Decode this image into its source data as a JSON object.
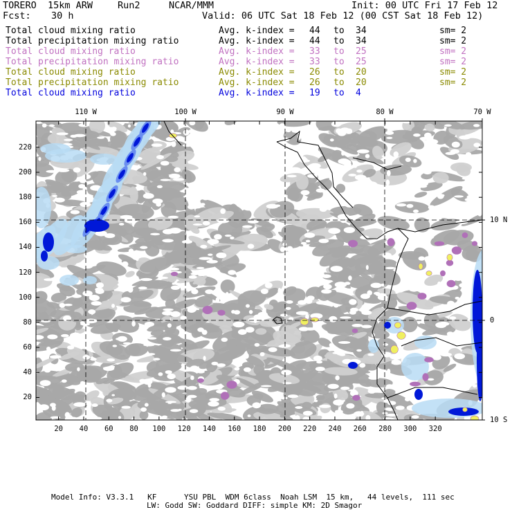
{
  "header": {
    "model": "TORERO  15km ARW",
    "run": "Run2",
    "org": "NCAR/MMM",
    "init": "Init: 00 UTC Fri 17 Feb 12",
    "fcst_label": "Fcst:",
    "fcst_value": "30 h",
    "valid": "Valid: 06 UTC Sat 18 Feb 12 (00 CST Sat 18 Feb 12)"
  },
  "legend": [
    {
      "field": "Total cloud mixing ratio",
      "index": "Avg. k-index =",
      "from": "44",
      "to_word": "to",
      "to": "34",
      "sm": "sm= 2",
      "color": "#000000"
    },
    {
      "field": "Total precipitation mixing ratio",
      "index": "Avg. k-index =",
      "from": "44",
      "to_word": "to",
      "to": "34",
      "sm": "sm= 2",
      "color": "#000000"
    },
    {
      "field": "Total cloud mixing ratio",
      "index": "Avg. k-index =",
      "from": "33",
      "to_word": "to",
      "to": "25",
      "sm": "sm= 2",
      "color": "#c070c0"
    },
    {
      "field": "Total precipitation mixing ratio",
      "index": "Avg. k-index =",
      "from": "33",
      "to_word": "to",
      "to": "25",
      "sm": "sm= 2",
      "color": "#c070c0"
    },
    {
      "field": "Total cloud mixing ratio",
      "index": "Avg. k-index =",
      "from": "26",
      "to_word": "to",
      "to": "20",
      "sm": "sm= 2",
      "color": "#8a8a00"
    },
    {
      "field": "Total precipitation mixing ratio",
      "index": "Avg. k-index =",
      "from": "26",
      "to_word": "to",
      "to": "20",
      "sm": "sm= 2",
      "color": "#8a8a00"
    },
    {
      "field": "Total cloud mixing ratio",
      "index": "Avg. k-index =",
      "from": "19",
      "to_word": "to",
      "to": "4",
      "sm": "",
      "color": "#0000dd"
    }
  ],
  "axes": {
    "top_labels": [
      "110 W",
      "100 W",
      "90 W",
      "80 W",
      "70 W"
    ],
    "right_labels": [
      "10 N",
      "0",
      "10 S"
    ],
    "y_ticks": [
      "220",
      "200",
      "180",
      "160",
      "140",
      "120",
      "100",
      "80",
      "60",
      "40",
      "20"
    ],
    "x_ticks": [
      "20",
      "40",
      "60",
      "80",
      "100",
      "120",
      "140",
      "160",
      "180",
      "200",
      "220",
      "240",
      "260",
      "280",
      "300",
      "320"
    ]
  },
  "footer": {
    "line1": "Model Info: V3.3.1   KF      YSU PBL  WDM 6class  Noah LSM  15 km,   44 levels,  111 sec",
    "line2": "LW: Godd SW: Goddard DIFF: simple KM: 2D Smagor"
  },
  "colors": {
    "gray_cloud": "#a8a8a8",
    "light_gray": "#d0d0d0",
    "light_blue": "#b8dcf4",
    "mid_blue": "#6a8ef0",
    "deep_blue": "#0018d8",
    "purple": "#b070b8",
    "yellow": "#f0f060",
    "coast": "#000000"
  }
}
